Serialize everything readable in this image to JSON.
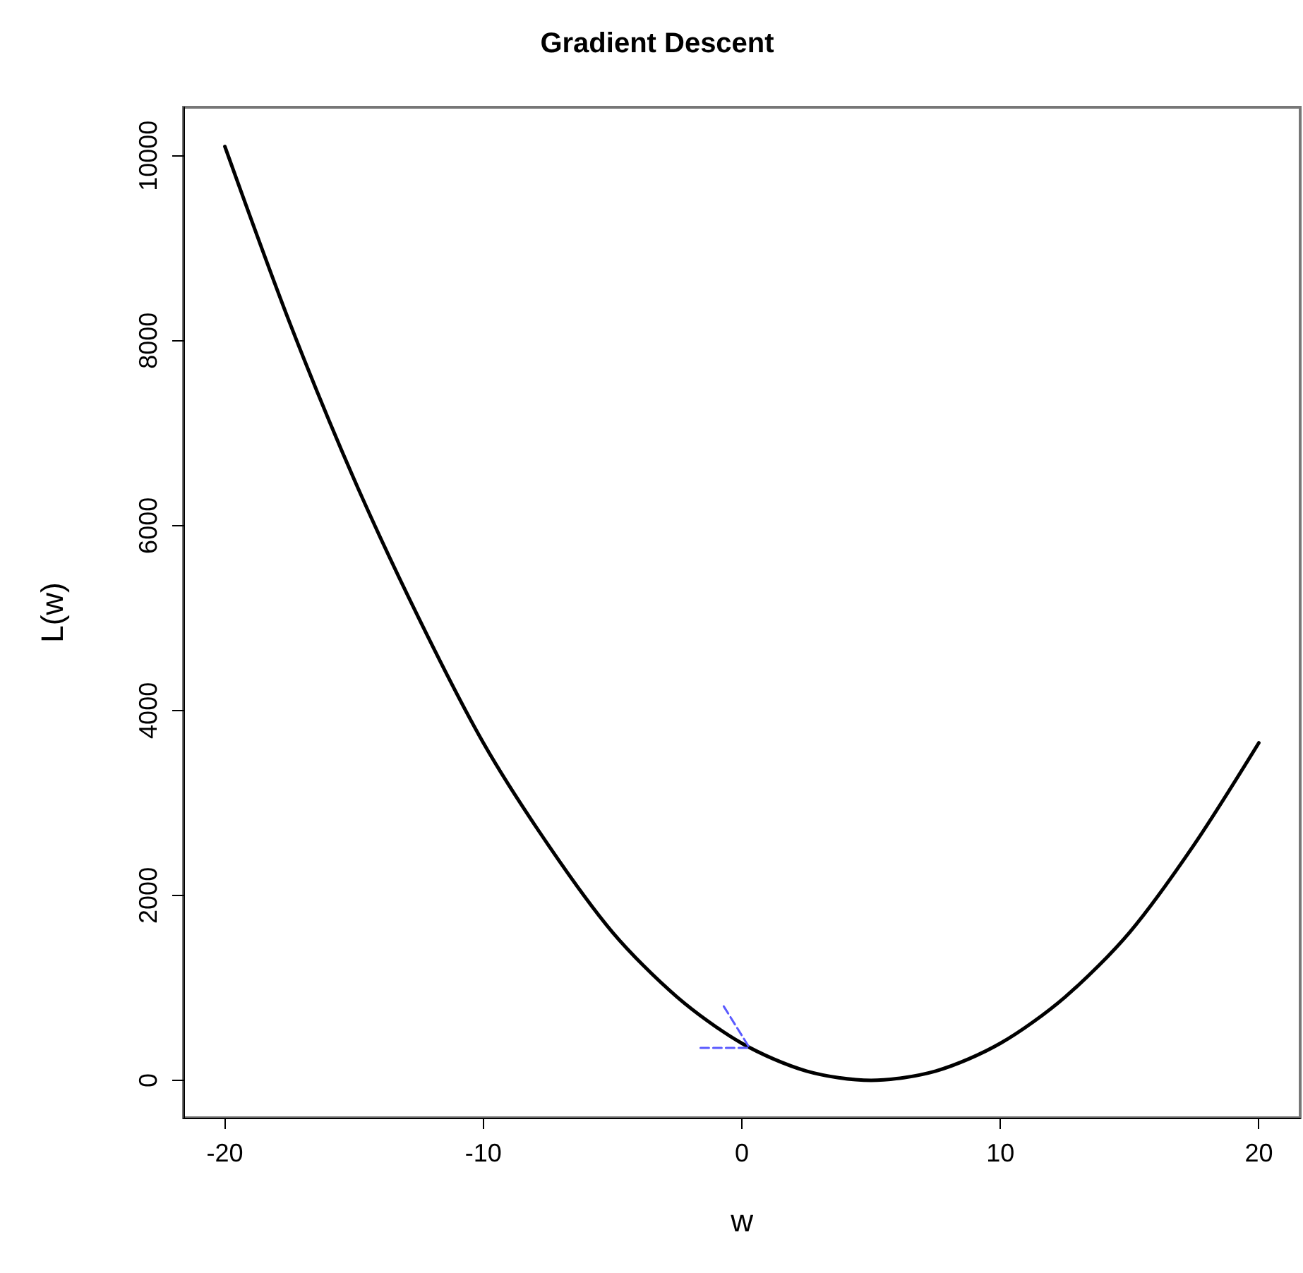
{
  "chart_data": {
    "type": "line",
    "title": "Gradient Descent",
    "xlabel": "w",
    "ylabel": "L(w)",
    "series": [
      {
        "color": "#000000",
        "x": [
          -20,
          -17.5,
          -15,
          -12.5,
          -10,
          -7.5,
          -5,
          -2.5,
          0,
          2.5,
          5,
          7.5,
          10,
          12.5,
          15,
          17.5,
          20
        ],
        "values": [
          10100,
          8200,
          6500,
          5000,
          3650,
          2550,
          1600,
          900,
          400,
          100,
          0,
          100,
          400,
          900,
          1600,
          2550,
          3650
        ]
      },
      {
        "color": "#5a5aff",
        "line_style": "dashed",
        "x": [
          -1.6,
          0.3
        ],
        "values": [
          350,
          350
        ]
      },
      {
        "color": "#5a5aff",
        "line_style": "dashed",
        "x": [
          -0.7,
          0.3
        ],
        "values": [
          800,
          350
        ]
      }
    ],
    "xlim": [
      -21.6,
      21.6
    ],
    "ylim": [
      -405,
      10525
    ],
    "xticks": [
      -20,
      -10,
      0,
      10,
      20
    ],
    "yticks": [
      0,
      2000,
      4000,
      6000,
      8000,
      10000
    ],
    "grid": false,
    "marker": "none",
    "line_style": "solid"
  }
}
